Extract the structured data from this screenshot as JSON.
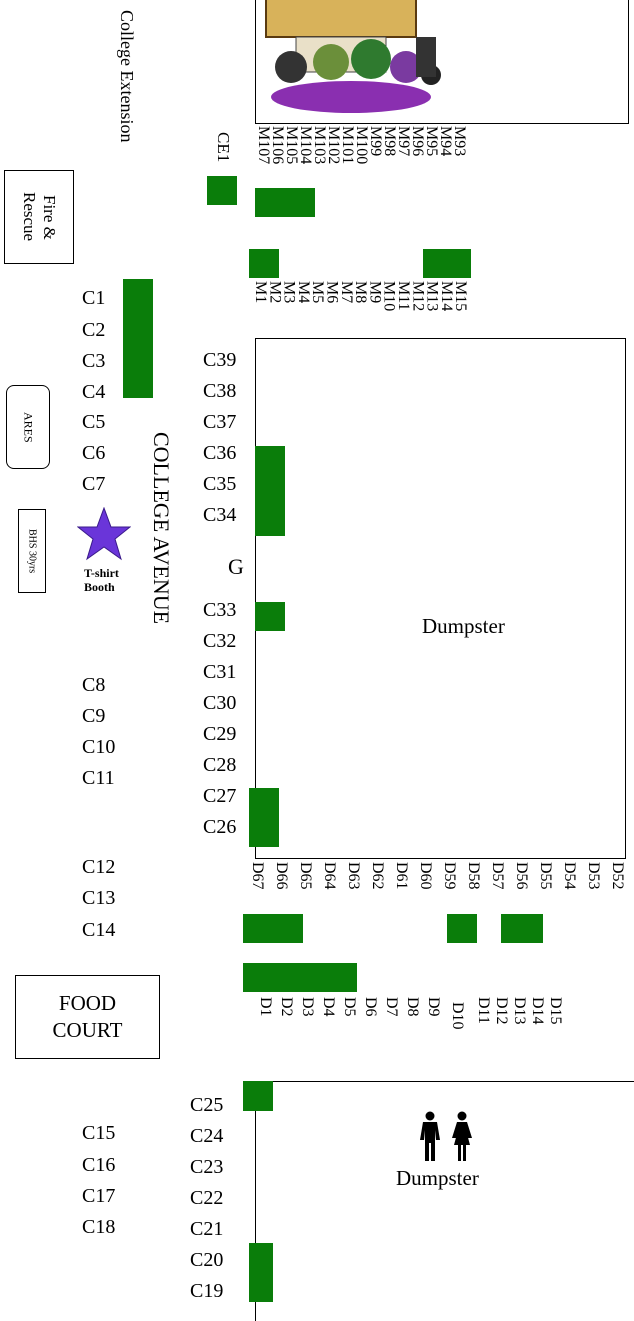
{
  "labels": {
    "college_extension": "College Extension",
    "fire_rescue": "Fire &\nRescue",
    "ares": "ARES",
    "bhs": "BHS 30yrs",
    "tshirt_booth": "T-shirt\nBooth",
    "college_avenue": "COLLEGE AVENUE",
    "food_court": "FOOD\nCOURT",
    "dumpster_upper": "Dumpster",
    "dumpster_lower": "Dumpster",
    "gate": "G",
    "ce1": "CE1",
    "restroom_icon": "restroom-icon"
  },
  "c_left": [
    "C1",
    "C2",
    "C3",
    "C4",
    "C5",
    "C6",
    "C7",
    "C8",
    "C9",
    "C10",
    "C11",
    "C12",
    "C13",
    "C14",
    "C15",
    "C16",
    "C17",
    "C18"
  ],
  "c_right_upper": [
    "C39",
    "C38",
    "C37",
    "C36",
    "C35",
    "C34",
    "C33",
    "C32",
    "C31",
    "C30",
    "C29",
    "C28",
    "C27",
    "C26"
  ],
  "c_right_lower": [
    "C25",
    "C24",
    "C23",
    "C22",
    "C21",
    "C20",
    "C19"
  ],
  "m_top": [
    "M107",
    "M106",
    "M105",
    "M104",
    "M103",
    "M102",
    "M101",
    "M100",
    "M99",
    "M98",
    "M97",
    "M96",
    "M95",
    "M94",
    "M93"
  ],
  "m_mid": [
    "M1",
    "M2",
    "M3",
    "M4",
    "M5",
    "M6",
    "M7",
    "M8",
    "M9",
    "M10",
    "M11",
    "M12",
    "M13",
    "M14",
    "M15"
  ],
  "d_upper": [
    "D67",
    "D66",
    "D65",
    "D64",
    "D63",
    "D62",
    "D61",
    "D60",
    "D59",
    "D58",
    "D57",
    "D56",
    "D55",
    "D54",
    "D53",
    "D52"
  ],
  "d_lower": [
    "D1",
    "D2",
    "D3",
    "D4",
    "D5",
    "D6",
    "D7",
    "D8",
    "D9",
    "D10",
    "D11",
    "D12",
    "D13",
    "D14",
    "D15"
  ],
  "colors": {
    "occupied": "#0a7d0a",
    "star": "#6a35d9"
  }
}
